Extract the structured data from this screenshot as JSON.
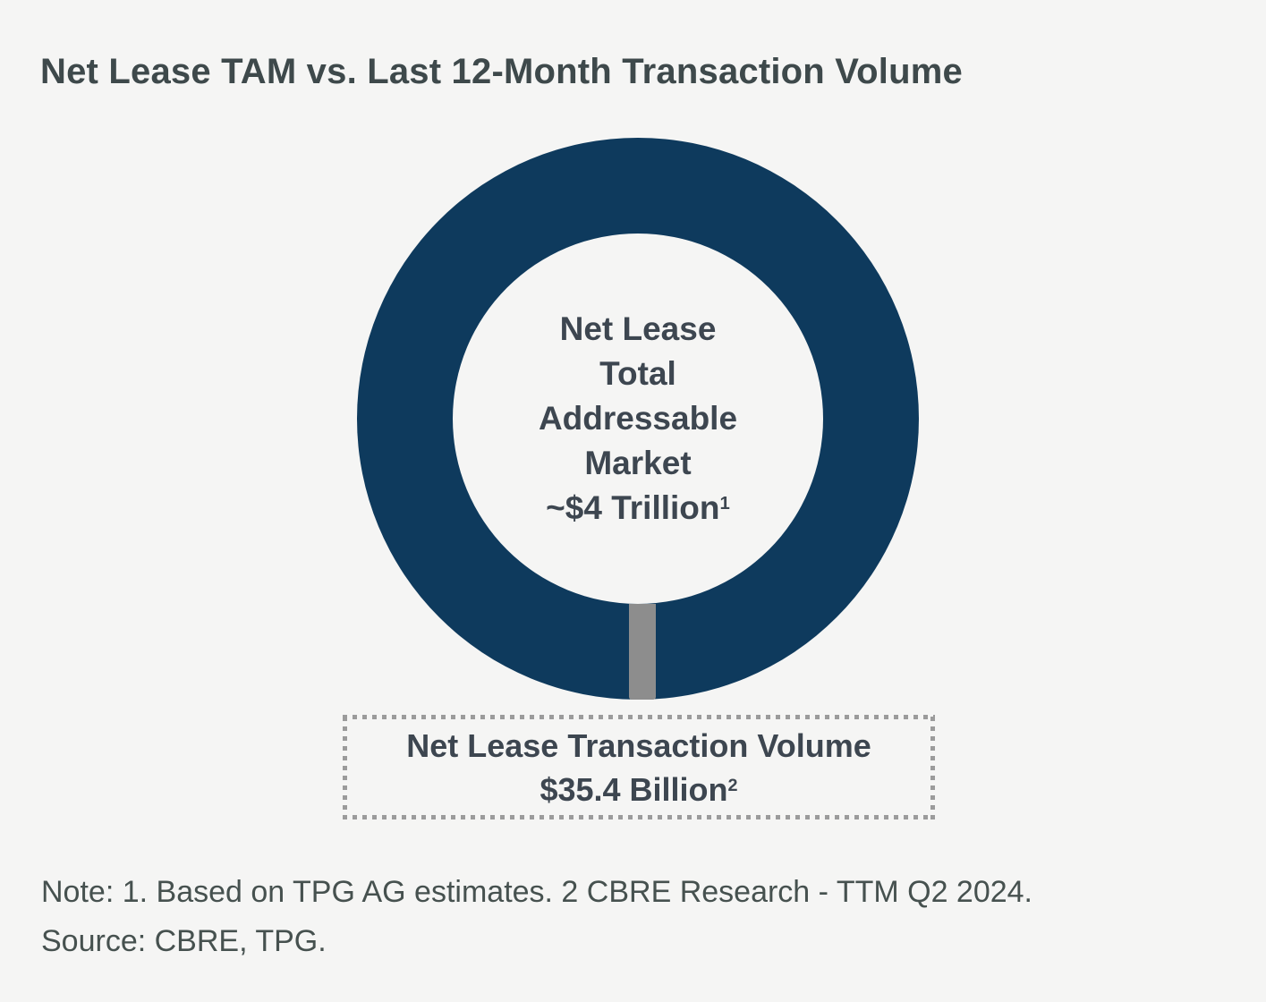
{
  "title": "Net Lease TAM vs. Last 12-Month Transaction Volume",
  "colors": {
    "background": "#F5F5F4",
    "donut_ring": "#0E3A5D",
    "wedge_gray": "#8D8D8D",
    "text_dark": "#3D4650",
    "title_color": "#3E494B",
    "note_color": "#46514F",
    "dot_color": "#9B9B9B"
  },
  "donut": {
    "center_label_lines": [
      "Net Lease",
      "Total",
      "Addressable",
      "Market"
    ],
    "center_value": "~$4 Trillion",
    "center_value_superscript": "1"
  },
  "transaction_box": {
    "label": "Net Lease Transaction Volume",
    "value": "$35.4 Billion",
    "superscript": "2"
  },
  "notes": {
    "line1": "Note: 1. Based on TPG AG estimates. 2 CBRE Research - TTM Q2 2024.",
    "line2": "Source: CBRE, TPG."
  },
  "chart_data": {
    "type": "pie",
    "variant": "donut",
    "title": "Net Lease TAM vs. Last 12-Month Transaction Volume",
    "series": [
      {
        "label": "Net Lease Total Addressable Market",
        "display_value": "~$4 Trillion",
        "value_usd_billions": 4000,
        "color": "#0E3A5D"
      },
      {
        "label": "Net Lease Transaction Volume",
        "display_value": "$35.4 Billion",
        "value_usd_billions": 35.4,
        "color": "#8D8D8D"
      }
    ],
    "legend_position": "none",
    "labels_placement": "center-of-donut and callout box below",
    "annotations": [
      "Note: 1. Based on TPG AG estimates. 2 CBRE Research - TTM Q2 2024.",
      "Source: CBRE, TPG."
    ]
  }
}
